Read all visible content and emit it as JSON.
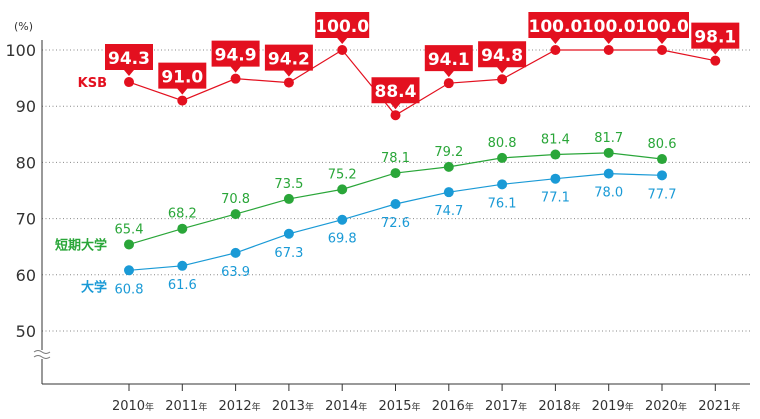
{
  "chart_data": {
    "type": "line",
    "unit_label": "(%)",
    "categories": [
      "2010",
      "2011",
      "2012",
      "2013",
      "2014",
      "2015",
      "2016",
      "2017",
      "2018",
      "2019",
      "2020",
      "2021"
    ],
    "year_suffix": "年",
    "ylim": [
      50,
      100
    ],
    "yticks": [
      "50",
      "60",
      "70",
      "80",
      "90",
      "100"
    ],
    "axis_break": true,
    "grid": true,
    "series": [
      {
        "name": "KSB",
        "color": "#e3101f",
        "values": [
          94.3,
          91.0,
          94.9,
          94.2,
          100.0,
          88.4,
          94.1,
          94.8,
          100.0,
          100.0,
          100.0,
          98.1
        ],
        "labels": [
          "94.3",
          "91.0",
          "94.9",
          "94.2",
          "100.0",
          "88.4",
          "94.1",
          "94.8",
          "100.0",
          "100.0",
          "100.0",
          "98.1"
        ]
      },
      {
        "name": "短期大学",
        "color": "#2aa639",
        "values": [
          65.4,
          68.2,
          70.8,
          73.5,
          75.2,
          78.1,
          79.2,
          80.8,
          81.4,
          81.7,
          80.6,
          null
        ],
        "labels": [
          "65.4",
          "68.2",
          "70.8",
          "73.5",
          "75.2",
          "78.1",
          "79.2",
          "80.8",
          "81.4",
          "81.7",
          "80.6",
          ""
        ]
      },
      {
        "name": "大学",
        "color": "#1a9ad6",
        "values": [
          60.8,
          61.6,
          63.9,
          67.3,
          69.8,
          72.6,
          74.7,
          76.1,
          77.1,
          78.0,
          77.7,
          null
        ],
        "labels": [
          "60.8",
          "61.6",
          "63.9",
          "67.3",
          "69.8",
          "72.6",
          "74.7",
          "76.1",
          "77.1",
          "78.0",
          "77.7",
          ""
        ]
      }
    ]
  }
}
